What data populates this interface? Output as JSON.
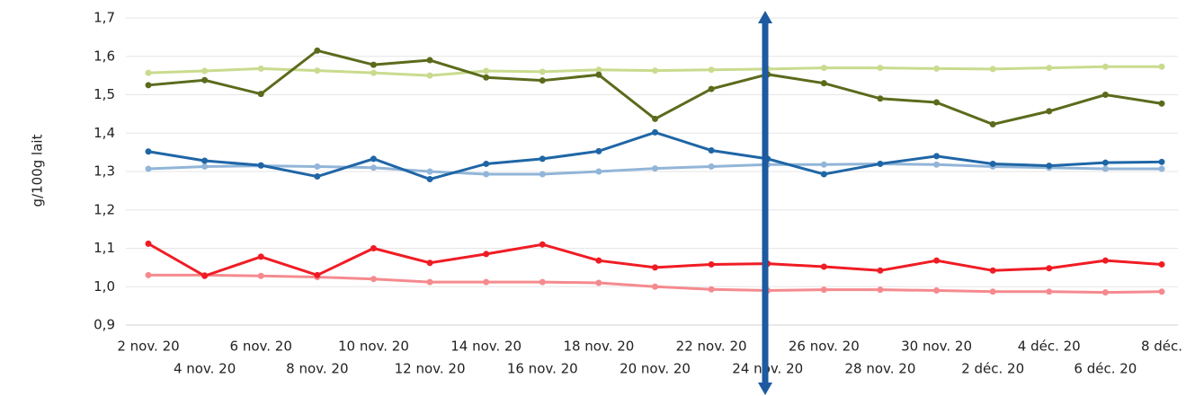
{
  "chart_data": {
    "type": "line",
    "ylabel": "g/100g lait",
    "categories": [
      "2 nov. 20",
      "4 nov. 20",
      "6 nov. 20",
      "8 nov. 20",
      "10 nov. 20",
      "12 nov. 20",
      "14 nov. 20",
      "16 nov. 20",
      "18 nov. 20",
      "20 nov. 20",
      "22 nov. 20",
      "24 nov. 20",
      "26 nov. 20",
      "28 nov. 20",
      "30 nov. 20",
      "2 déc. 20",
      "4 déc. 20",
      "6 déc. 20",
      "8 déc."
    ],
    "series": [
      {
        "color": "#c9db8e",
        "values": [
          1.557,
          1.562,
          1.568,
          1.563,
          1.557,
          1.55,
          1.562,
          1.56,
          1.565,
          1.563,
          1.565,
          1.567,
          1.57,
          1.57,
          1.568,
          1.567,
          1.57,
          1.573,
          1.573
        ]
      },
      {
        "color": "#5b6b1c",
        "values": [
          1.525,
          1.538,
          1.502,
          1.615,
          1.578,
          1.59,
          1.545,
          1.537,
          1.552,
          1.437,
          1.515,
          1.553,
          1.53,
          1.49,
          1.48,
          1.423,
          1.457,
          1.5,
          1.477
        ]
      },
      {
        "color": "#92b5d8",
        "values": [
          1.307,
          1.313,
          1.315,
          1.313,
          1.31,
          1.3,
          1.293,
          1.293,
          1.3,
          1.308,
          1.313,
          1.318,
          1.318,
          1.32,
          1.318,
          1.313,
          1.31,
          1.307,
          1.307
        ]
      },
      {
        "color": "#1f66a6",
        "values": [
          1.352,
          1.328,
          1.316,
          1.287,
          1.333,
          1.28,
          1.32,
          1.333,
          1.353,
          1.402,
          1.355,
          1.333,
          1.293,
          1.32,
          1.34,
          1.32,
          1.315,
          1.323,
          1.325
        ]
      },
      {
        "color": "#f58a8e",
        "values": [
          1.03,
          1.03,
          1.028,
          1.025,
          1.02,
          1.012,
          1.012,
          1.012,
          1.01,
          1.0,
          0.993,
          0.99,
          0.992,
          0.992,
          0.99,
          0.987,
          0.987,
          0.985,
          0.987
        ]
      },
      {
        "color": "#f01c24",
        "values": [
          1.112,
          1.028,
          1.078,
          1.03,
          1.1,
          1.062,
          1.085,
          1.11,
          1.068,
          1.05,
          1.058,
          1.06,
          1.052,
          1.042,
          1.068,
          1.042,
          1.048,
          1.068,
          1.058
        ]
      }
    ],
    "ylim": [
      0.9,
      1.7
    ],
    "yticks": [
      {
        "value": 0.9,
        "label": "0,9"
      },
      {
        "value": 1.0,
        "label": "1,0"
      },
      {
        "value": 1.1,
        "label": "1,1"
      },
      {
        "value": 1.2,
        "label": "1,2"
      },
      {
        "value": 1.3,
        "label": "1,3"
      },
      {
        "value": 1.4,
        "label": "1,4"
      },
      {
        "value": 1.5,
        "label": "1,5"
      },
      {
        "value": 1.6,
        "label": "1,6"
      },
      {
        "value": 1.7,
        "label": "1,7"
      }
    ],
    "grid": true
  }
}
